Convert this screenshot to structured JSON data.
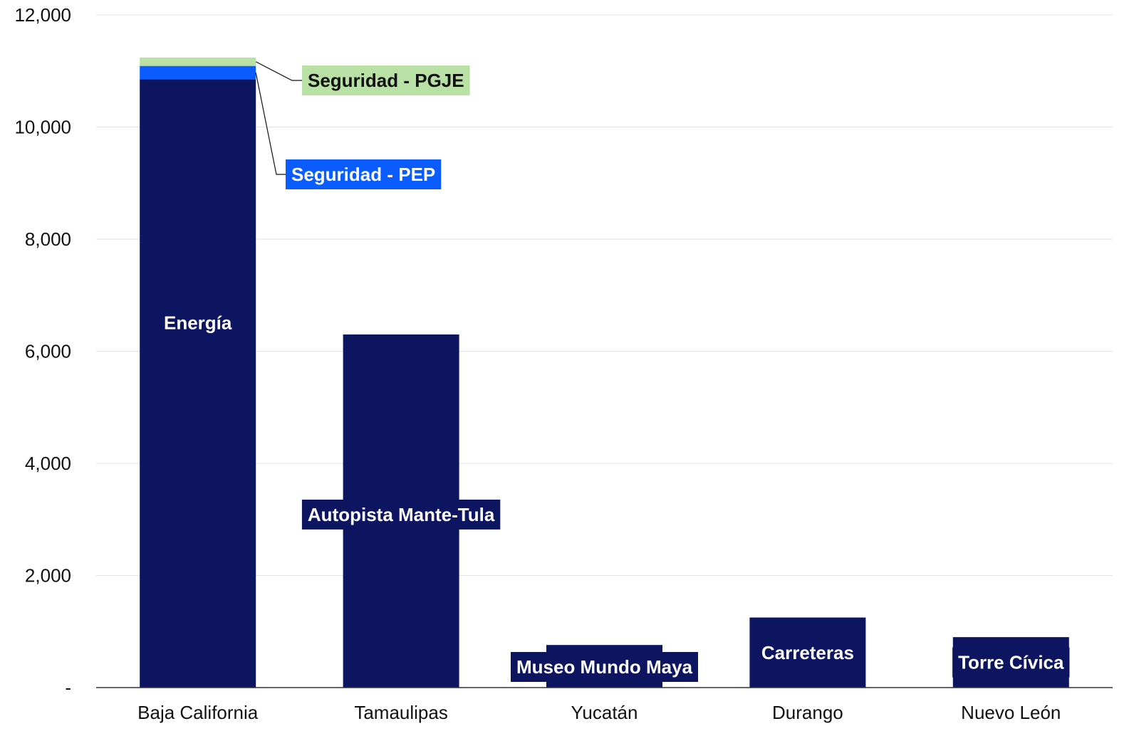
{
  "chart_data": {
    "type": "bar",
    "stacked": true,
    "title": "",
    "xlabel": "",
    "ylabel": "",
    "ylim": [
      0,
      12000
    ],
    "yticks": [
      0,
      2000,
      4000,
      6000,
      8000,
      10000,
      12000
    ],
    "ytick_labels": [
      "-",
      "2,000",
      "4,000",
      "6,000",
      "8,000",
      "10,000",
      "12,000"
    ],
    "grid": true,
    "categories": [
      "Baja California",
      "Tamaulipas",
      "Yucatán",
      "Durango",
      "Nuevo León"
    ],
    "series": [
      {
        "name": "",
        "color": "#0d1561",
        "values": [
          10850,
          6300,
          760,
          1250,
          900
        ],
        "labels": [
          "Energía",
          "Autopista Mante-Tula",
          "Museo Mundo Maya",
          "Carreteras",
          "Torre Cívica"
        ]
      },
      {
        "name": "",
        "color": "#0a5cff",
        "values": [
          240,
          0,
          0,
          0,
          0
        ],
        "labels": [
          "Seguridad - PEP",
          "",
          "",
          "",
          ""
        ]
      },
      {
        "name": "",
        "color": "#b9e0a5",
        "values": [
          150,
          0,
          0,
          0,
          0
        ],
        "labels": [
          "Seguridad - PGJE",
          "",
          "",
          "",
          ""
        ]
      }
    ]
  }
}
